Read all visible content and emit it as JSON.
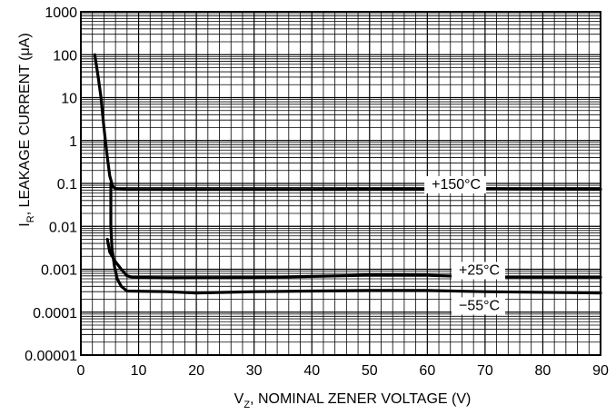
{
  "chart_data": {
    "type": "line",
    "xlabel": {
      "main": "V",
      "sub": "Z",
      "rest": ", NOMINAL ZENER VOLTAGE (V)"
    },
    "ylabel": {
      "main": "I",
      "sub": "R",
      "rest": ", LEAKAGE CURRENT (μA)"
    },
    "xlim": [
      0,
      90
    ],
    "ylim": [
      1e-05,
      1000
    ],
    "y_scale": "log",
    "grid": true,
    "x_ticks": [
      {
        "value": 0,
        "label": "0"
      },
      {
        "value": 10,
        "label": "10"
      },
      {
        "value": 20,
        "label": "20"
      },
      {
        "value": 30,
        "label": "30"
      },
      {
        "value": 40,
        "label": "40"
      },
      {
        "value": 50,
        "label": "50"
      },
      {
        "value": 60,
        "label": "60"
      },
      {
        "value": 70,
        "label": "70"
      },
      {
        "value": 80,
        "label": "80"
      },
      {
        "value": 90,
        "label": "90"
      }
    ],
    "y_ticks": [
      {
        "value": 1e-05,
        "label": "0.00001"
      },
      {
        "value": 0.0001,
        "label": "0.0001"
      },
      {
        "value": 0.001,
        "label": "0.001"
      },
      {
        "value": 0.01,
        "label": "0.01"
      },
      {
        "value": 0.1,
        "label": "0.1"
      },
      {
        "value": 1,
        "label": "1"
      },
      {
        "value": 10,
        "label": "10"
      },
      {
        "value": 100,
        "label": "100"
      },
      {
        "value": 1000,
        "label": "1000"
      }
    ],
    "series": [
      {
        "name": "+150°C",
        "label_at": [
          65,
          0.1
        ],
        "points": [
          [
            2.4,
            100
          ],
          [
            3,
            30
          ],
          [
            3.5,
            10
          ],
          [
            4,
            2
          ],
          [
            4.5,
            0.5
          ],
          [
            5,
            0.15
          ],
          [
            5.5,
            0.085
          ],
          [
            6,
            0.075
          ],
          [
            8,
            0.072
          ],
          [
            20,
            0.072
          ],
          [
            40,
            0.072
          ],
          [
            60,
            0.073
          ],
          [
            68,
            0.076
          ],
          [
            75,
            0.074
          ],
          [
            90,
            0.073
          ]
        ]
      },
      {
        "name": "+25°C",
        "label_at": [
          69,
          0.001
        ],
        "points": [
          [
            4.6,
            0.005
          ],
          [
            5,
            0.0025
          ],
          [
            6,
            0.0015
          ],
          [
            7,
            0.001
          ],
          [
            8,
            0.0007
          ],
          [
            9,
            0.00065
          ],
          [
            15,
            0.00063
          ],
          [
            30,
            0.00064
          ],
          [
            40,
            0.00068
          ],
          [
            50,
            0.00073
          ],
          [
            60,
            0.00072
          ],
          [
            70,
            0.00066
          ],
          [
            90,
            0.00065
          ]
        ]
      },
      {
        "name": "−55°C",
        "label_at": [
          69,
          0.00015
        ],
        "points": [
          [
            5.2,
            0.1
          ],
          [
            5.2,
            0.01
          ],
          [
            5.4,
            0.003
          ],
          [
            5.8,
            0.0012
          ],
          [
            6.3,
            0.0006
          ],
          [
            7,
            0.0004
          ],
          [
            8,
            0.00031
          ],
          [
            15,
            0.0003
          ],
          [
            20,
            0.00028
          ],
          [
            30,
            0.0003
          ],
          [
            40,
            0.00031
          ],
          [
            50,
            0.00032
          ],
          [
            60,
            0.00032
          ],
          [
            70,
            0.0003
          ],
          [
            90,
            0.00028
          ]
        ]
      }
    ]
  }
}
